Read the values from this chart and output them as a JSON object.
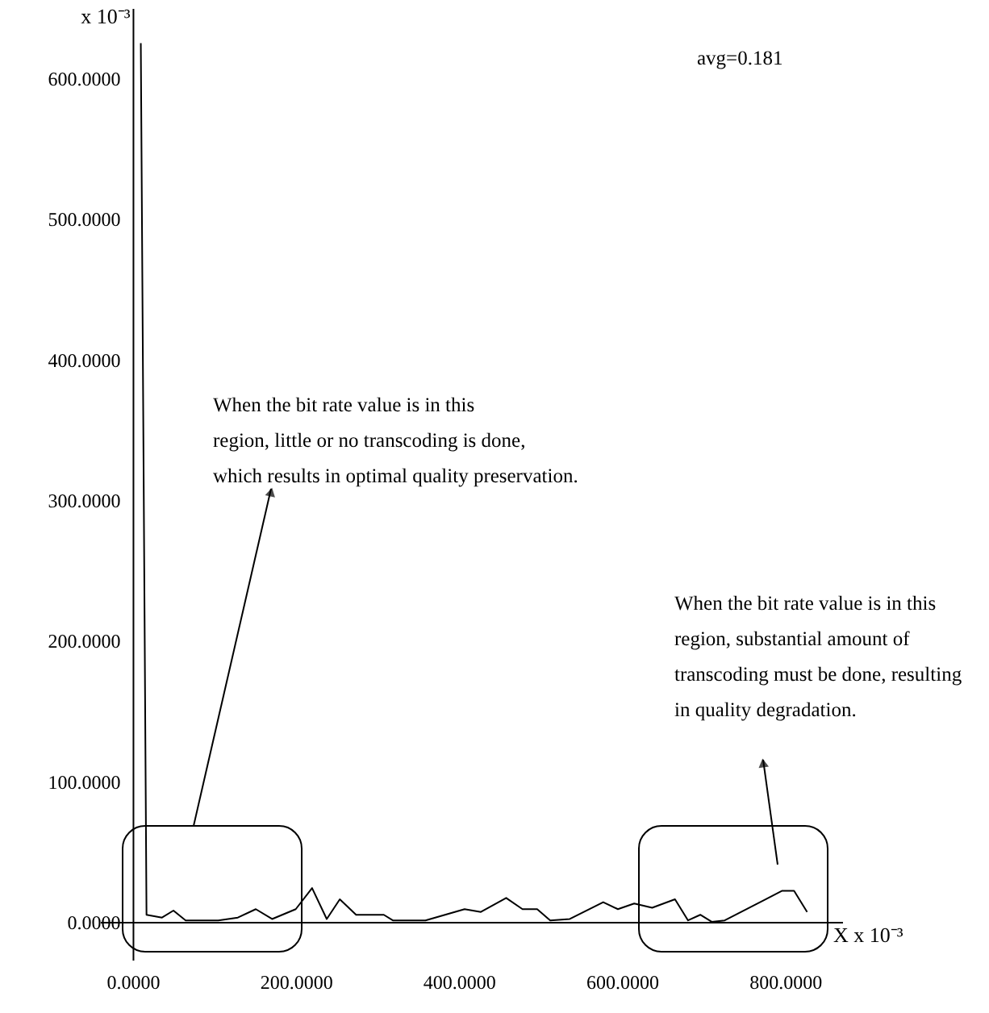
{
  "chart_data": {
    "type": "line",
    "xlabel": "X x 10⁻³",
    "ylabel": "x 10⁻³",
    "x": [
      10,
      17,
      36,
      50,
      65,
      105,
      129,
      151,
      171,
      200,
      220,
      238,
      254,
      274,
      308,
      319,
      359,
      407,
      427,
      458,
      478,
      496,
      512,
      536,
      577,
      595,
      615,
      637,
      665,
      681,
      696,
      710,
      726,
      776,
      796,
      811,
      827
    ],
    "series": [
      {
        "color": "#000000",
        "values": [
          625,
          5,
          3,
          8,
          1,
          1,
          3,
          9,
          2,
          9,
          24,
          2,
          16,
          5,
          5,
          1,
          1,
          9,
          7,
          17,
          9,
          9,
          1,
          2,
          14,
          9,
          13,
          10,
          16,
          1,
          5,
          0,
          1,
          16,
          22,
          22,
          7
        ]
      }
    ],
    "xlim": [
      -40,
      870
    ],
    "ylim": [
      -27,
      650
    ],
    "xticks": [
      {
        "value": 0,
        "label": "0.0000"
      },
      {
        "value": 200,
        "label": "200.0000"
      },
      {
        "value": 400,
        "label": "400.0000"
      },
      {
        "value": 600,
        "label": "600.0000"
      },
      {
        "value": 800,
        "label": "800.0000"
      }
    ],
    "yticks": [
      {
        "value": 0,
        "label": "0.0000"
      },
      {
        "value": 100,
        "label": "100.0000"
      },
      {
        "value": 200,
        "label": "200.0000"
      },
      {
        "value": 300,
        "label": "300.0000"
      },
      {
        "value": 400,
        "label": "400.0000"
      },
      {
        "value": 500,
        "label": "500.0000"
      },
      {
        "value": 600,
        "label": "600.0000"
      }
    ],
    "annotations": [
      "avg=0.181",
      "When the bit rate value is in this\nregion, little or no transcoding is done,\nwhich results in optimal quality preservation.",
      "When the bit rate value is in this\nregion, substantial amount of\ntranscoding must be done, resulting\nin quality degradation."
    ],
    "grid": false,
    "marker": "none",
    "line_style": "solid"
  }
}
